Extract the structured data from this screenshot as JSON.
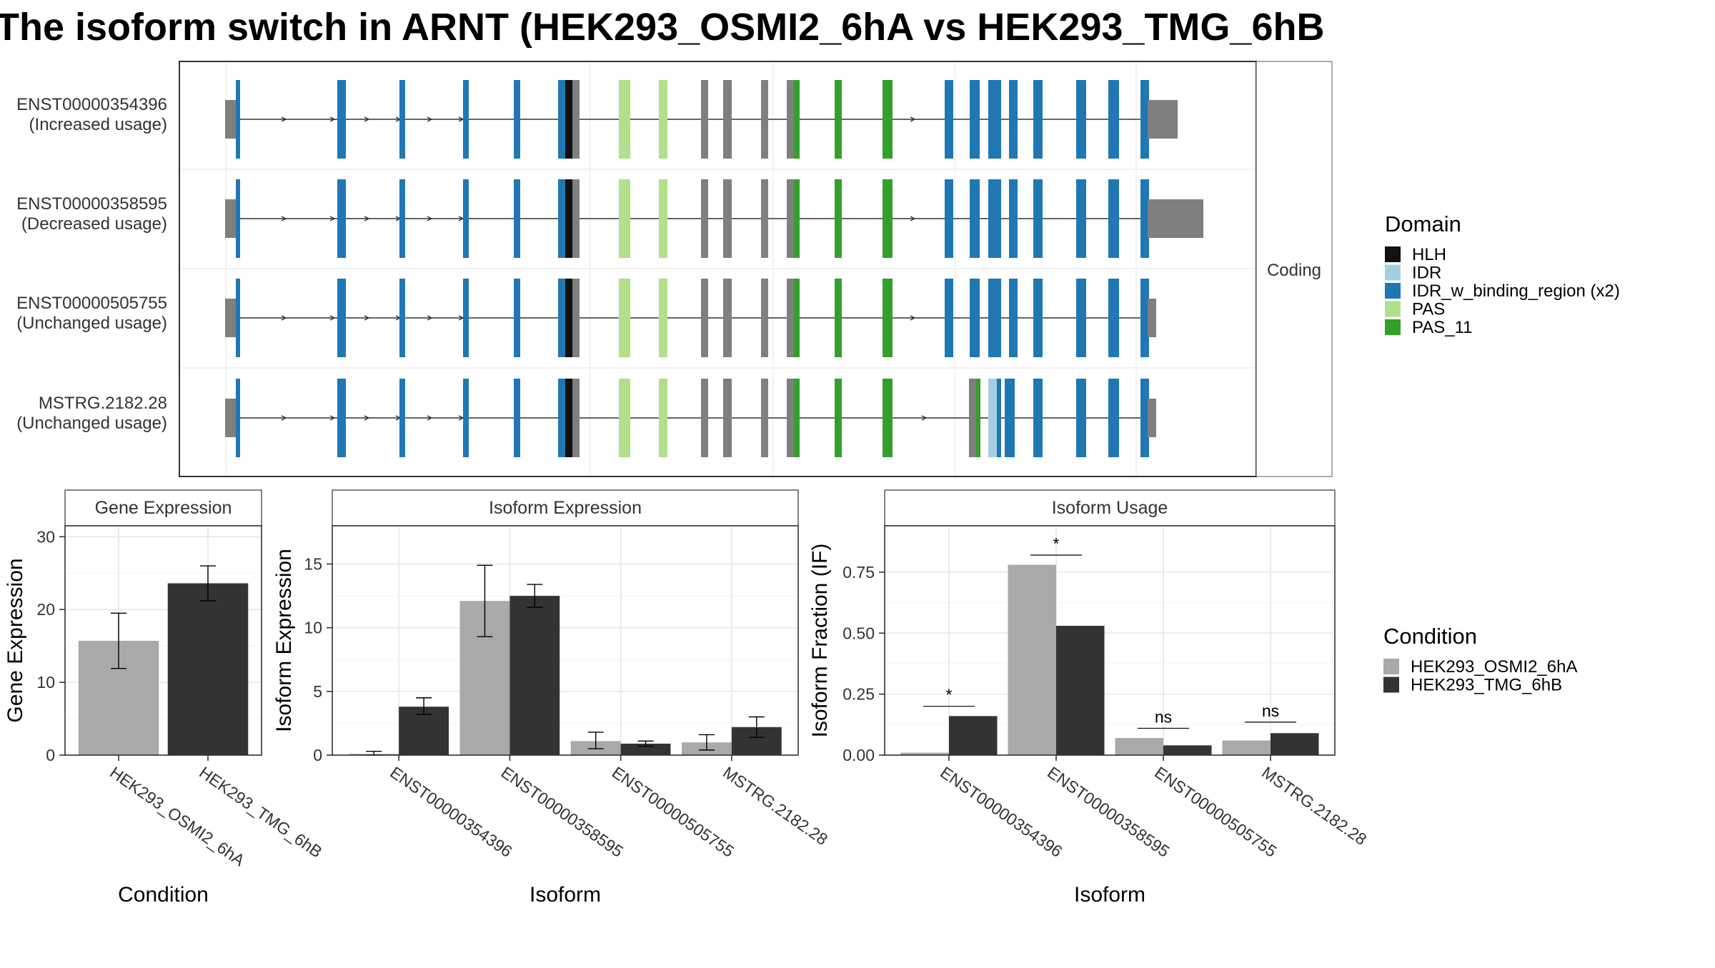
{
  "title": "The isoform switch in ARNT (HEK293_OSMI2_6hA vs HEK293_TMG_6hB",
  "colors": {
    "HLH": "#111111",
    "IDR": "#a6cee3",
    "IDR_w_binding_region": "#1f78b4",
    "PAS": "#b2df8a",
    "PAS_11": "#33a02c",
    "none": "#7f7f7f",
    "cond1": "#a9a9a9",
    "cond2": "#333333",
    "grid": "#ebebeb"
  },
  "structure": {
    "facet_label": "Coding",
    "isoforms": [
      {
        "id": "ENST00000354396",
        "usage": "(Increased usage)",
        "utr3": "mid"
      },
      {
        "id": "ENST00000358595",
        "usage": "(Decreased usage)",
        "utr3": "long"
      },
      {
        "id": "ENST00000505755",
        "usage": "(Unchanged usage)",
        "utr3": "short"
      },
      {
        "id": "MSTRG.2182.28",
        "usage": "(Unchanged usage)",
        "utr3": "short"
      }
    ],
    "legend": {
      "title": "Domain",
      "items": [
        {
          "label": "HLH",
          "color": "#111111"
        },
        {
          "label": "IDR",
          "color": "#a6cee3"
        },
        {
          "label": "IDR_w_binding_region (x2)",
          "color": "#1f78b4"
        },
        {
          "label": "PAS",
          "color": "#b2df8a"
        },
        {
          "label": "PAS_11",
          "color": "#33a02c"
        }
      ]
    }
  },
  "condition_legend": {
    "title": "Condition",
    "items": [
      {
        "label": "HEK293_OSMI2_6hA",
        "color": "#a9a9a9"
      },
      {
        "label": "HEK293_TMG_6hB",
        "color": "#333333"
      }
    ]
  },
  "chart_data": [
    {
      "type": "bar",
      "title": "Gene Expression",
      "xlabel": "Condition",
      "ylabel": "Gene Expression",
      "ylim": [
        0,
        31.5
      ],
      "yticks": [
        0,
        10,
        20,
        30
      ],
      "categories": [
        "HEK293_OSMI2_6hA",
        "HEK293_TMG_6hB"
      ],
      "values": [
        15.7,
        23.6
      ],
      "err_low": [
        11.9,
        21.2
      ],
      "err_high": [
        19.5,
        26.0
      ]
    },
    {
      "type": "bar",
      "title": "Isoform Expression",
      "xlabel": "Isoform",
      "ylabel": "Isoform Expression",
      "ylim": [
        0,
        18
      ],
      "yticks": [
        0,
        5,
        10,
        15
      ],
      "categories": [
        "ENST00000354396",
        "ENST00000358595",
        "ENST00000505755",
        "MSTRG.2182.28"
      ],
      "series": [
        {
          "name": "HEK293_OSMI2_6hA",
          "values": [
            0.1,
            12.1,
            1.1,
            1.0
          ],
          "err_low": [
            0.0,
            9.3,
            0.5,
            0.4
          ],
          "err_high": [
            0.3,
            14.9,
            1.8,
            1.6
          ]
        },
        {
          "name": "HEK293_TMG_6hB",
          "values": [
            3.8,
            12.5,
            0.9,
            2.2
          ],
          "err_low": [
            3.2,
            11.6,
            0.7,
            1.4
          ],
          "err_high": [
            4.5,
            13.4,
            1.1,
            3.0
          ]
        }
      ]
    },
    {
      "type": "bar",
      "title": "Isoform Usage",
      "xlabel": "Isoform",
      "ylabel": "Isoform Fraction (IF)",
      "ylim": [
        0,
        0.94
      ],
      "yticks": [
        0,
        0.25,
        0.5,
        0.75
      ],
      "ytick_labels": [
        "0.00",
        "0.25",
        "0.50",
        "0.75"
      ],
      "categories": [
        "ENST00000354396",
        "ENST00000358595",
        "ENST00000505755",
        "MSTRG.2182.28"
      ],
      "series": [
        {
          "name": "HEK293_OSMI2_6hA",
          "values": [
            0.01,
            0.78,
            0.07,
            0.06
          ]
        },
        {
          "name": "HEK293_TMG_6hB",
          "values": [
            0.16,
            0.53,
            0.04,
            0.09
          ]
        }
      ],
      "significance": [
        "*",
        "*",
        "ns",
        "ns"
      ],
      "sig_levels": [
        0.2,
        0.82,
        0.11,
        0.135
      ]
    }
  ]
}
